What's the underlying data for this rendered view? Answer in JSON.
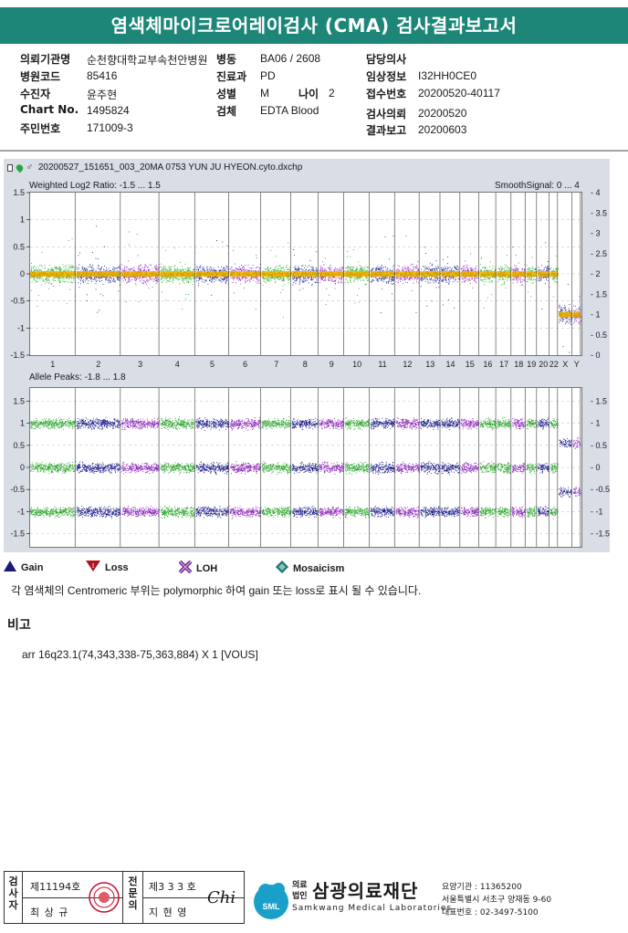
{
  "report_title": "염색체마이크로어레이검사 (CMA) 검사결과보고서",
  "patient_info": {
    "col1": [
      {
        "label": "의뢰기관명",
        "value": "순천향대학교부속천안병원"
      },
      {
        "label": "병원코드",
        "value": "85416"
      },
      {
        "label": "수진자",
        "value": "윤주현"
      },
      {
        "label": "Chart No.",
        "value": "1495824"
      },
      {
        "label": "주민번호",
        "value": "171009-3"
      }
    ],
    "col2": [
      {
        "label": "병동",
        "value": "BA06 / 2608"
      },
      {
        "label": "진료과",
        "value": "PD"
      },
      {
        "label": "성별",
        "value": "M"
      },
      {
        "label": "검체",
        "value": "EDTA Blood"
      }
    ],
    "age_label": "나이",
    "age_value": "2",
    "col3": [
      {
        "label": "담당의사",
        "value": ""
      },
      {
        "label": "임상정보",
        "value": "I32HH0CE0"
      },
      {
        "label": "접수번호",
        "value": "20200520-40117"
      },
      {
        "label": "검사의뢰",
        "value": "20200520"
      },
      {
        "label": "결과보고",
        "value": "20200603"
      }
    ]
  },
  "plot": {
    "file_name": "20200527_151651_003_20MA 0753 YUN JU HYEON.cyto.dxchp",
    "top_panel_caption": "Weighted Log2 Ratio: -1.5 ... 1.5",
    "top_panel_right_caption": "SmoothSignal: 0 ... 4",
    "bottom_panel_caption": "Allele Peaks: -1.8 ... 1.8"
  },
  "chart_data": [
    {
      "type": "scatter",
      "title": "Weighted Log2 Ratio: -1.5 ... 1.5",
      "right_axis_title": "SmoothSignal: 0 ... 4",
      "ylim": [
        -1.5,
        1.5
      ],
      "y2lim": [
        0,
        4
      ],
      "y_ticks": [
        "1.5",
        "1",
        "0.5",
        "0",
        "-0.5",
        "-1",
        "-1.5"
      ],
      "y2_ticks": [
        "4",
        "3.5",
        "3",
        "2.5",
        "2",
        "1.5",
        "1",
        "0.5",
        "0"
      ],
      "categories": [
        "1",
        "2",
        "3",
        "4",
        "5",
        "6",
        "7",
        "8",
        "9",
        "10",
        "11",
        "12",
        "13",
        "14",
        "15",
        "16",
        "17",
        "18",
        "19",
        "20",
        "22",
        "X",
        "Y"
      ],
      "smooth_signal_level": [
        2,
        2,
        2,
        2,
        2,
        2,
        2,
        2,
        2,
        2,
        2,
        2,
        2,
        2,
        2,
        2,
        2,
        2,
        2,
        2,
        2,
        1,
        1
      ],
      "grid": true
    },
    {
      "type": "scatter",
      "title": "Allele Peaks: -1.8 ... 1.8",
      "ylim": [
        -1.8,
        1.8
      ],
      "y_ticks": [
        "1.5",
        "1",
        "0.5",
        "0",
        "-0.5",
        "-1",
        "-1.5"
      ],
      "y2_ticks": [
        "1.5",
        "1",
        "0.5",
        "0",
        "-0.5",
        "-1",
        "-1.5"
      ],
      "allele_peak_levels": [
        1.0,
        0.0,
        -1.0
      ],
      "grid": true
    }
  ],
  "legend": [
    {
      "label": "Gain",
      "icon": "triangle-up",
      "color": "#1a1a7a"
    },
    {
      "label": "Loss",
      "icon": "triangle-down",
      "color": "#b01020"
    },
    {
      "label": "LOH",
      "icon": "x-star",
      "color": "#6a1a8a"
    },
    {
      "label": "Mosaicism",
      "icon": "diamond",
      "color": "#1e6f6a"
    }
  ],
  "note": "각 염색체의 Centromeric 부위는 polymorphic 하여 gain 또는 loss로 표시 될 수 있습니다.",
  "remarks": {
    "heading": "비고",
    "text": "arr 16q23.1(74,343,338-75,363,884) X 1 [VOUS]"
  },
  "footer": {
    "examiner_label": "검사자",
    "examiner_license": "제11194호",
    "examiner_name": "최 상 규",
    "specialist_label": "전문의",
    "specialist_license": "제3 3 3 호",
    "specialist_name": "지 현 영",
    "specialist_signature": "Chi",
    "org_prefix_1": "의료",
    "org_prefix_2": "법인",
    "org_name": "삼광의료재단",
    "org_name_en": "Samkwang Medical Laboratories",
    "org_logo_text": "SML",
    "org_code": "요양기관 : 11365200",
    "org_address": "서울특별시 서초구 양재동 9-60",
    "org_phone": "대표번호 : 02-3497-5100"
  },
  "colors": {
    "title_bar": "#1e8678",
    "series_green": "#2aa52a",
    "series_navy": "#1a1a88",
    "series_purple": "#8a24b8",
    "smooth_signal": "#f2b800"
  }
}
